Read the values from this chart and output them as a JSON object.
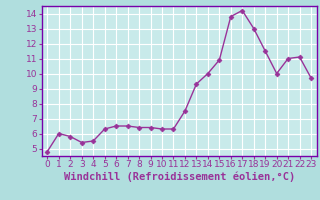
{
  "x": [
    0,
    1,
    2,
    3,
    4,
    5,
    6,
    7,
    8,
    9,
    10,
    11,
    12,
    13,
    14,
    15,
    16,
    17,
    18,
    19,
    20,
    21,
    22,
    23
  ],
  "y": [
    4.8,
    6.0,
    5.8,
    5.4,
    5.5,
    6.3,
    6.5,
    6.5,
    6.4,
    6.4,
    6.3,
    6.3,
    7.5,
    9.3,
    10.0,
    10.9,
    13.8,
    14.2,
    13.0,
    11.5,
    10.0,
    11.0,
    11.1,
    9.7
  ],
  "line_color": "#993399",
  "marker": "D",
  "marker_size": 2.5,
  "linewidth": 1.0,
  "xlabel": "Windchill (Refroidissement éolien,°C)",
  "xlim": [
    -0.5,
    23.5
  ],
  "ylim": [
    4.5,
    14.5
  ],
  "yticks": [
    5,
    6,
    7,
    8,
    9,
    10,
    11,
    12,
    13,
    14
  ],
  "xticks": [
    0,
    1,
    2,
    3,
    4,
    5,
    6,
    7,
    8,
    9,
    10,
    11,
    12,
    13,
    14,
    15,
    16,
    17,
    18,
    19,
    20,
    21,
    22,
    23
  ],
  "background_color": "#b0dede",
  "plot_bg_color": "#c8eaea",
  "grid_color": "#ffffff",
  "spine_color": "#7700aa",
  "tick_color": "#993399",
  "label_color": "#993399",
  "xlabel_fontsize": 7.5,
  "tick_fontsize": 6.5,
  "xlabel_fontweight": "bold"
}
